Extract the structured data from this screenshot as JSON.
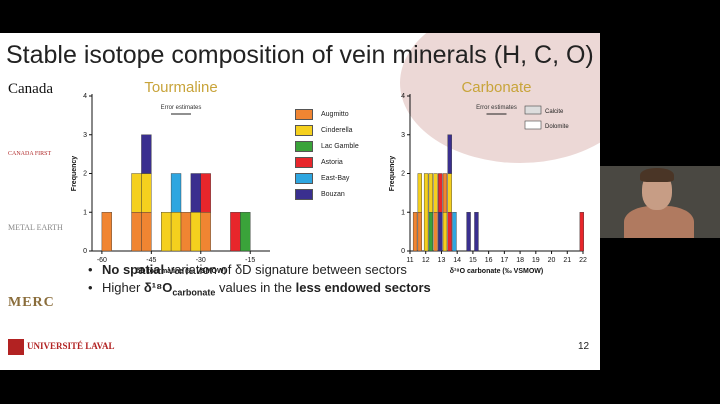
{
  "slide": {
    "title": "Stable isotope composition of vein minerals (H, C, O)",
    "page_number": "12",
    "logos": {
      "canada": "Canada",
      "canada_first": "CANADA FIRST",
      "metal_earth": "METAL EARTH",
      "merc": "MERC",
      "laval": "UNIVERSITÉ LAVAL"
    },
    "bullets": [
      {
        "bold": "No spatial",
        "rest": " variation of δD signature between sectors"
      },
      {
        "pre": "Higher ",
        "bold": "δ¹⁸O",
        "sub": "carbonate",
        "mid": " values in the ",
        "bold2": "less endowed sectors"
      }
    ]
  },
  "colors": {
    "Augmitto": "#f08532",
    "Cinderella": "#f5d01e",
    "Lac Gamble": "#3aa33a",
    "Astoria": "#e8262b",
    "East-Bay": "#2ea6e0",
    "Bouzan": "#3a2f8f",
    "tourmaline_title": "#c8a43a",
    "carbonate_title": "#c8a43a"
  },
  "legend": [
    "Augmitto",
    "Cinderella",
    "Lac Gamble",
    "Astoria",
    "East-Bay",
    "Bouzan"
  ],
  "chart_data": [
    {
      "type": "bar",
      "title": "Tourmaline",
      "xlabel": "δD tourmaline (‰ VSMOW)",
      "ylabel": "Frequency",
      "xlim": [
        -63,
        -9
      ],
      "ylim": [
        0,
        4
      ],
      "xticks": [
        -60,
        -45,
        -30,
        -15
      ],
      "yticks": [
        0,
        1,
        2,
        3,
        4
      ],
      "annotation": "Error estimates",
      "bin_width": 3,
      "bars": [
        {
          "x": -60,
          "stack": [
            [
              "Augmitto",
              1
            ]
          ]
        },
        {
          "x": -51,
          "stack": [
            [
              "Augmitto",
              1
            ],
            [
              "Cinderella",
              1
            ]
          ]
        },
        {
          "x": -48,
          "stack": [
            [
              "Augmitto",
              1
            ],
            [
              "Cinderella",
              1
            ],
            [
              "Bouzan",
              1
            ]
          ]
        },
        {
          "x": -42,
          "stack": [
            [
              "Cinderella",
              1
            ]
          ]
        },
        {
          "x": -39,
          "stack": [
            [
              "Cinderella",
              1
            ],
            [
              "East-Bay",
              1
            ]
          ]
        },
        {
          "x": -36,
          "stack": [
            [
              "Augmitto",
              1
            ]
          ]
        },
        {
          "x": -33,
          "stack": [
            [
              "Cinderella",
              1
            ],
            [
              "Bouzan",
              1
            ]
          ]
        },
        {
          "x": -30,
          "stack": [
            [
              "Augmitto",
              1
            ],
            [
              "Astoria",
              1
            ]
          ]
        },
        {
          "x": -21,
          "stack": [
            [
              "Astoria",
              1
            ]
          ]
        },
        {
          "x": -18,
          "stack": [
            [
              "Lac Gamble",
              1
            ]
          ]
        }
      ]
    },
    {
      "type": "bar",
      "title": "Carbonate",
      "xlabel": "δ¹⁸O carbonate (‰ VSMOW)",
      "ylabel": "Frequency",
      "xlim": [
        11,
        22
      ],
      "ylim": [
        0,
        4
      ],
      "xticks": [
        11,
        12,
        13,
        14,
        15,
        16,
        17,
        18,
        19,
        20,
        21,
        22
      ],
      "yticks": [
        0,
        1,
        2,
        3,
        4
      ],
      "annotation": "Error estimates",
      "legend": [
        "Calcite",
        "Dolomite"
      ],
      "bin_width": 0.25,
      "bars": [
        {
          "x": 11.2,
          "stack": [
            [
              "Augmitto",
              1
            ]
          ]
        },
        {
          "x": 11.5,
          "stack": [
            [
              "Augmitto",
              1
            ],
            [
              "Cinderella",
              1
            ]
          ]
        },
        {
          "x": 11.9,
          "stack": [
            [
              "Cinderella",
              2
            ]
          ]
        },
        {
          "x": 12.2,
          "stack": [
            [
              "Lac Gamble",
              1
            ],
            [
              "Cinderella",
              1
            ]
          ]
        },
        {
          "x": 12.5,
          "stack": [
            [
              "Augmitto",
              1
            ],
            [
              "Cinderella",
              1
            ]
          ]
        },
        {
          "x": 12.8,
          "stack": [
            [
              "Bouzan",
              1
            ],
            [
              "Astoria",
              1
            ]
          ]
        },
        {
          "x": 13.1,
          "stack": [
            [
              "Cinderella",
              1
            ],
            [
              "Augmitto",
              1
            ]
          ]
        },
        {
          "x": 13.4,
          "stack": [
            [
              "Astoria",
              1
            ],
            [
              "Cinderella",
              1
            ],
            [
              "Bouzan",
              1
            ]
          ]
        },
        {
          "x": 13.7,
          "stack": [
            [
              "East-Bay",
              1
            ]
          ]
        },
        {
          "x": 14.6,
          "stack": [
            [
              "Bouzan",
              1
            ]
          ]
        },
        {
          "x": 15.1,
          "stack": [
            [
              "Bouzan",
              1
            ]
          ]
        },
        {
          "x": 21.8,
          "stack": [
            [
              "Astoria",
              1
            ]
          ]
        }
      ]
    }
  ]
}
